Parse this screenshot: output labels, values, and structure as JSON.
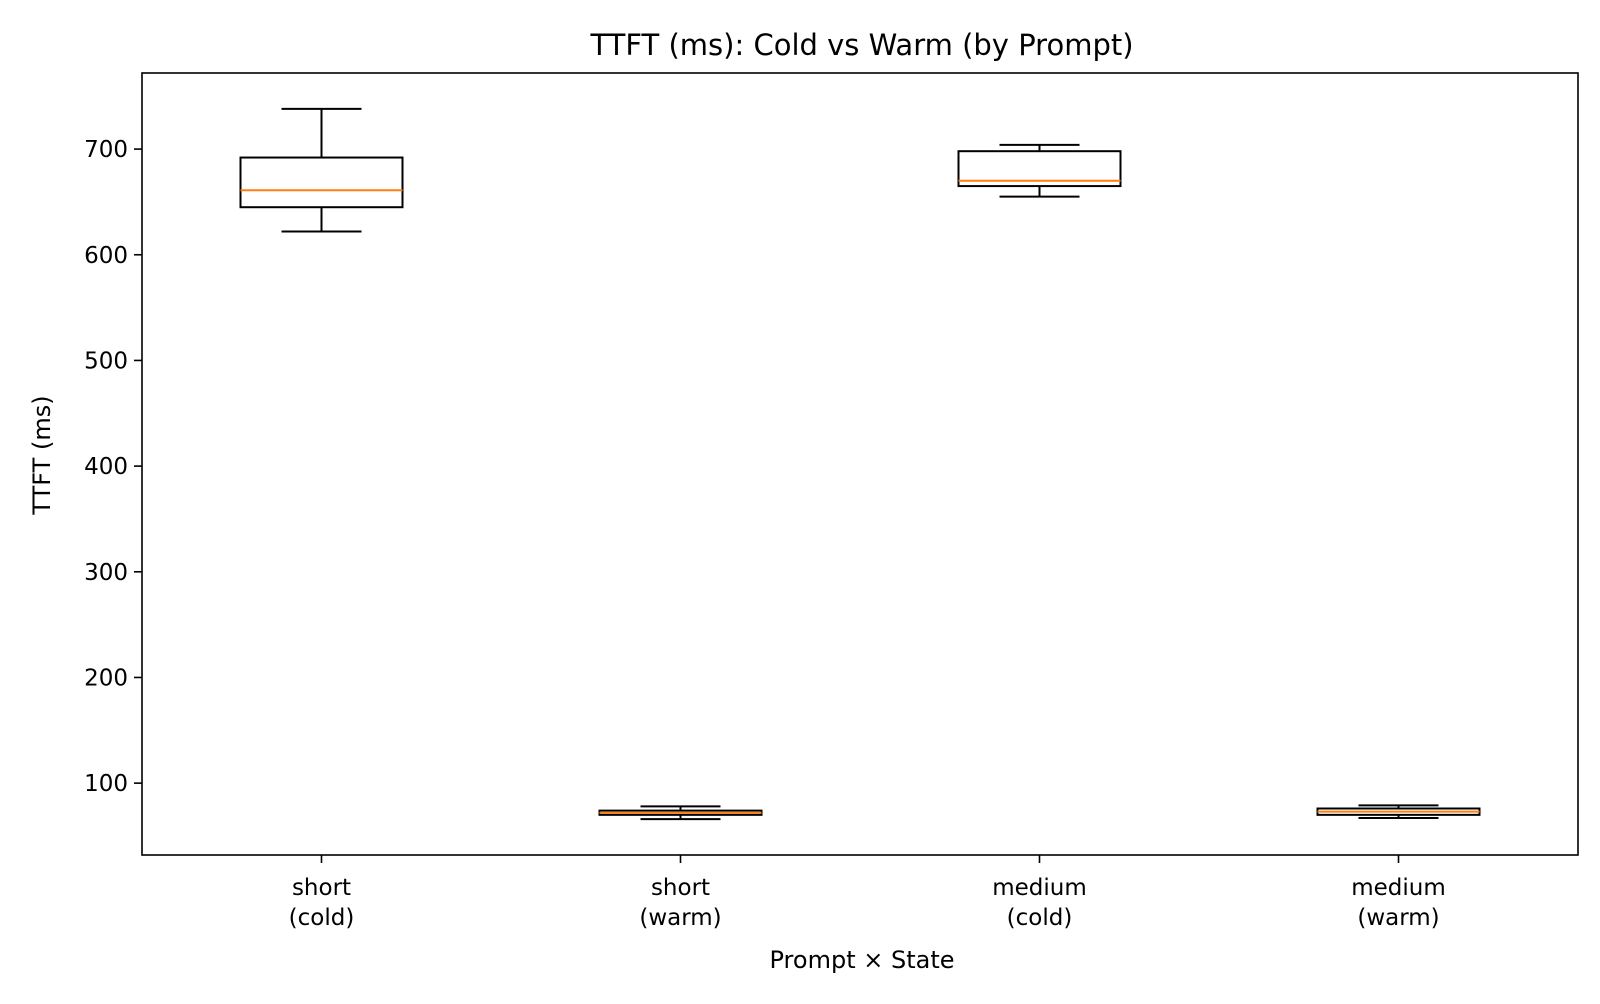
{
  "chart_data": {
    "type": "box",
    "title": "TTFT (ms): Cold vs Warm (by Prompt)",
    "xlabel": "Prompt × State",
    "ylabel": "TTFT (ms)",
    "categories": [
      [
        "short",
        "(cold)"
      ],
      [
        "short",
        "(warm)"
      ],
      [
        "medium",
        "(cold)"
      ],
      [
        "medium",
        "(warm)"
      ]
    ],
    "boxes": [
      {
        "whisker_low": 622,
        "q1": 645,
        "median": 661,
        "q3": 692,
        "whisker_high": 738
      },
      {
        "whisker_low": 66,
        "q1": 70,
        "median": 72,
        "q3": 74,
        "whisker_high": 78
      },
      {
        "whisker_low": 655,
        "q1": 665,
        "median": 670,
        "q3": 698,
        "whisker_high": 704
      },
      {
        "whisker_low": 67,
        "q1": 70,
        "median": 73,
        "q3": 76,
        "whisker_high": 79
      }
    ],
    "ylim": [
      32,
      772
    ],
    "yticks": [
      100,
      200,
      300,
      400,
      500,
      600,
      700
    ],
    "grid": false,
    "colors": {
      "box": "#000000",
      "median": "#ff7f0e",
      "background": "#ffffff"
    }
  }
}
